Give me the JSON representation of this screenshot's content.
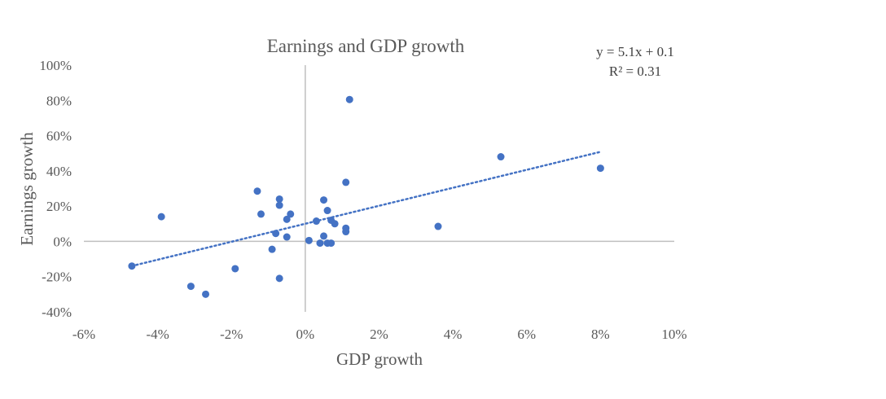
{
  "chart_data": {
    "type": "scatter",
    "title": "Earnings and GDP growth",
    "xlabel": "GDP growth",
    "ylabel": "Earnings growth",
    "xlim": [
      -0.06,
      0.1
    ],
    "ylim": [
      -0.4,
      1.0
    ],
    "x_ticks": [
      -0.06,
      -0.04,
      -0.02,
      0,
      0.02,
      0.04,
      0.06,
      0.08,
      0.1
    ],
    "x_tick_labels": [
      "-6%",
      "-4%",
      "-2%",
      "0%",
      "2%",
      "4%",
      "6%",
      "8%",
      "10%"
    ],
    "y_ticks": [
      -0.4,
      -0.2,
      0,
      0.2,
      0.4,
      0.6,
      0.8,
      1.0
    ],
    "y_tick_labels": [
      "-40%",
      "-20%",
      "0%",
      "20%",
      "40%",
      "60%",
      "80%",
      "100%"
    ],
    "grid": false,
    "point_color": "#4472c4",
    "trendline": {
      "slope": 5.1,
      "intercept": 0.1,
      "x_range": [
        -0.047,
        0.08
      ],
      "color": "#4472c4",
      "style": "dotted",
      "equation_label": "y = 5.1x + 0.1",
      "r2_label": "R² = 0.31"
    },
    "points": [
      {
        "x": -0.047,
        "y": -0.14
      },
      {
        "x": -0.039,
        "y": 0.14
      },
      {
        "x": -0.031,
        "y": -0.255
      },
      {
        "x": -0.027,
        "y": -0.3
      },
      {
        "x": -0.019,
        "y": -0.155
      },
      {
        "x": -0.013,
        "y": 0.285
      },
      {
        "x": -0.012,
        "y": 0.155
      },
      {
        "x": -0.009,
        "y": -0.045
      },
      {
        "x": -0.008,
        "y": 0.045
      },
      {
        "x": -0.007,
        "y": 0.24
      },
      {
        "x": -0.007,
        "y": 0.205
      },
      {
        "x": -0.007,
        "y": -0.21
      },
      {
        "x": -0.005,
        "y": 0.125
      },
      {
        "x": -0.005,
        "y": 0.025
      },
      {
        "x": -0.004,
        "y": 0.155
      },
      {
        "x": 0.001,
        "y": 0.005
      },
      {
        "x": 0.003,
        "y": 0.115
      },
      {
        "x": 0.004,
        "y": -0.01
      },
      {
        "x": 0.005,
        "y": 0.235
      },
      {
        "x": 0.005,
        "y": 0.03
      },
      {
        "x": 0.006,
        "y": 0.175
      },
      {
        "x": 0.006,
        "y": -0.01
      },
      {
        "x": 0.007,
        "y": 0.12
      },
      {
        "x": 0.007,
        "y": -0.01
      },
      {
        "x": 0.008,
        "y": 0.1
      },
      {
        "x": 0.011,
        "y": 0.335
      },
      {
        "x": 0.011,
        "y": 0.075
      },
      {
        "x": 0.011,
        "y": 0.055
      },
      {
        "x": 0.012,
        "y": 0.805
      },
      {
        "x": 0.036,
        "y": 0.085
      },
      {
        "x": 0.053,
        "y": 0.48
      },
      {
        "x": 0.08,
        "y": 0.415
      }
    ]
  }
}
